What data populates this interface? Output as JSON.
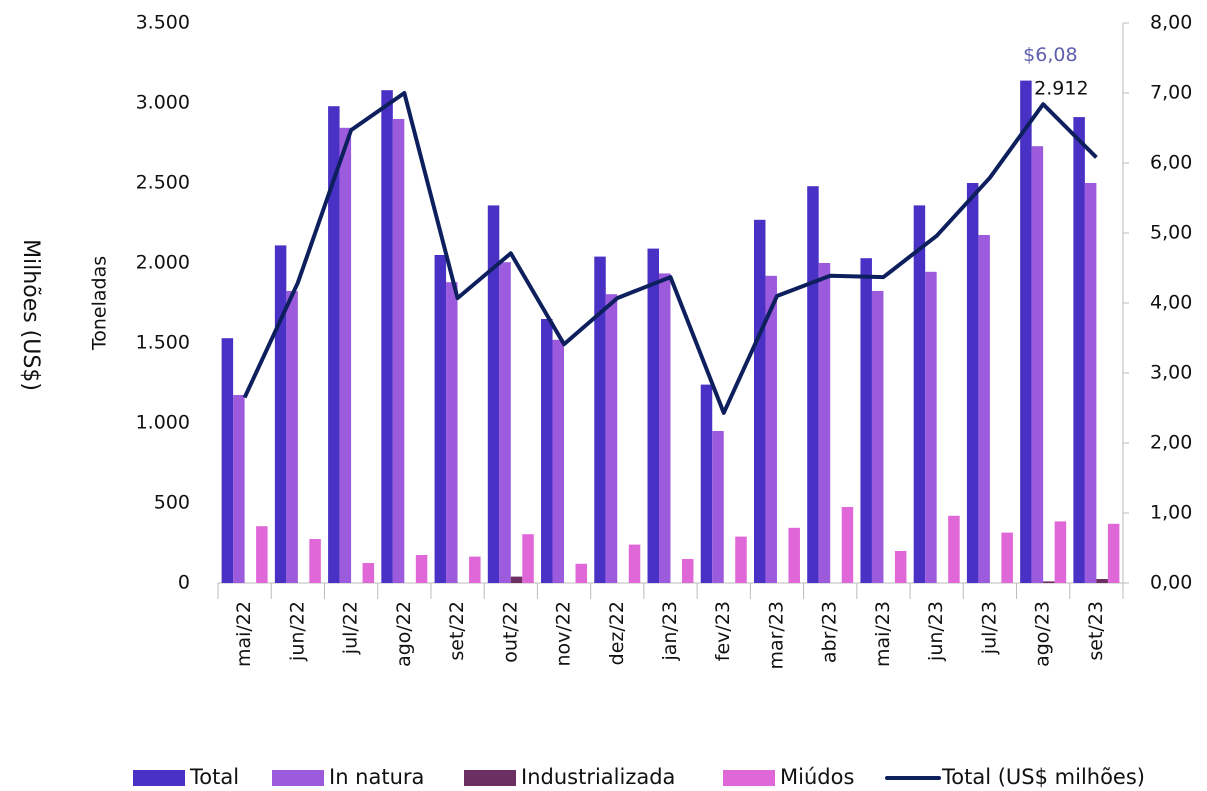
{
  "chart_data": {
    "type": "bar",
    "y_label": "Toneladas",
    "y2_label": "Milhões (US$)",
    "categories": [
      "mai/22",
      "jun/22",
      "jul/22",
      "ago/22",
      "set/22",
      "out/22",
      "nov/22",
      "dez/22",
      "jan/23",
      "fev/23",
      "mar/23",
      "abr/23",
      "mai/23",
      "jun/23",
      "jul/23",
      "ago/23",
      "set/23"
    ],
    "series": [
      {
        "name": "Total",
        "type": "bar",
        "color": "#4a31c6",
        "values": [
          1530,
          2110,
          2980,
          3080,
          2050,
          2360,
          1650,
          2040,
          2090,
          1240,
          2270,
          2480,
          2030,
          2360,
          2500,
          3140,
          2912
        ],
        "value_labels": [
          null,
          null,
          null,
          null,
          null,
          null,
          null,
          null,
          null,
          null,
          null,
          null,
          null,
          null,
          null,
          null,
          "2.912"
        ]
      },
      {
        "name": "In natura",
        "type": "bar",
        "color": "#9b5bdc",
        "values": [
          1175,
          1825,
          2845,
          2900,
          1880,
          2005,
          1520,
          1805,
          1935,
          950,
          1920,
          2000,
          1825,
          1945,
          2175,
          2730,
          2500
        ]
      },
      {
        "name": "Industrializada",
        "type": "bar",
        "color": "#6b2f62",
        "values": [
          0,
          0,
          0,
          0,
          0,
          40,
          0,
          0,
          0,
          0,
          0,
          0,
          0,
          0,
          0,
          10,
          25
        ]
      },
      {
        "name": "Miúdos",
        "type": "bar",
        "color": "#e067d8",
        "values": [
          355,
          275,
          125,
          175,
          165,
          305,
          120,
          240,
          150,
          290,
          345,
          475,
          200,
          420,
          315,
          385,
          370
        ]
      },
      {
        "name": "Total (US$ milhões)",
        "type": "line",
        "axis": "y2",
        "color": "#0e1f5e",
        "values": [
          2.65,
          4.29,
          6.47,
          7.0,
          4.07,
          4.71,
          3.41,
          4.07,
          4.37,
          2.43,
          4.1,
          4.39,
          4.37,
          4.96,
          5.79,
          6.84,
          6.08
        ],
        "value_labels": [
          null,
          null,
          null,
          null,
          null,
          null,
          null,
          null,
          null,
          null,
          null,
          null,
          null,
          null,
          null,
          null,
          "$6,08"
        ]
      }
    ],
    "ylim": [
      0,
      3500
    ],
    "yticks": [
      0,
      500,
      {
        "value": 1000,
        "label": "1.000"
      },
      {
        "value": 1500,
        "label": "1.500"
      },
      {
        "value": 2000,
        "label": "2.000"
      },
      {
        "value": 2500,
        "label": "2.500"
      },
      {
        "value": 3000,
        "label": "3.000"
      },
      {
        "value": 3500,
        "label": "3.500"
      }
    ],
    "y2lim": [
      0,
      8
    ],
    "y2ticks": [
      {
        "value": 0,
        "label": "0,00"
      },
      {
        "value": 1,
        "label": "1,00"
      },
      {
        "value": 2,
        "label": "2,00"
      },
      {
        "value": 3,
        "label": "3,00"
      },
      {
        "value": 4,
        "label": "4,00"
      },
      {
        "value": 5,
        "label": "5,00"
      },
      {
        "value": 6,
        "label": "6,00"
      },
      {
        "value": 7,
        "label": "7,00"
      },
      {
        "value": 8,
        "label": "8,00"
      }
    ],
    "grid": false,
    "legend": "bottom"
  }
}
